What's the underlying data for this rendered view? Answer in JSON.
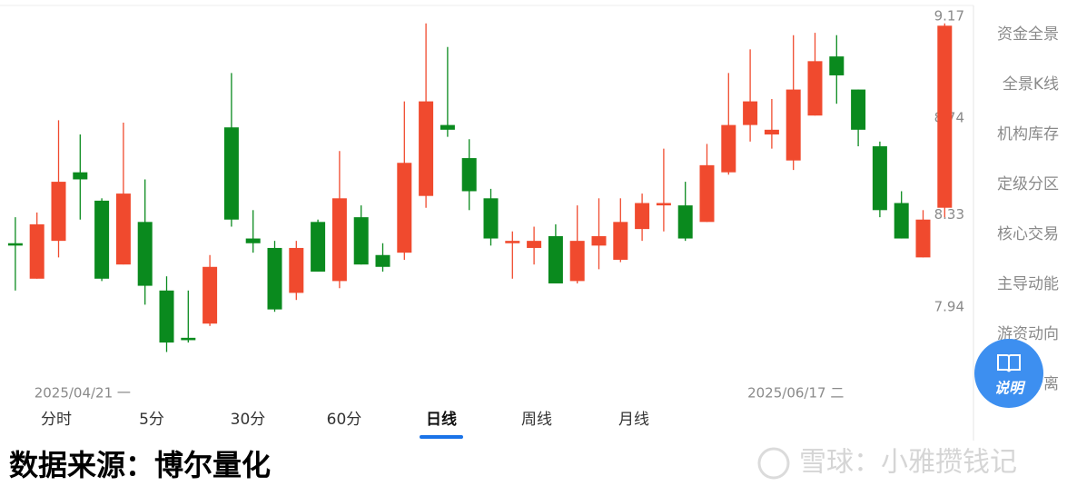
{
  "chart_data": {
    "type": "candlestick",
    "categories": [
      null,
      "2025/04/21 一",
      null,
      null,
      null,
      null,
      null,
      null,
      null,
      null,
      null,
      null,
      null,
      null,
      null,
      null,
      null,
      null,
      null,
      null,
      null,
      null,
      null,
      null,
      null,
      null,
      null,
      null,
      null,
      null,
      null,
      null,
      null,
      null,
      "2025/06/17 二",
      null,
      null,
      null,
      null,
      null,
      null,
      null,
      null,
      null
    ],
    "open": [
      8.21,
      8.06,
      8.22,
      8.51,
      8.39,
      8.12,
      8.3,
      8.01,
      7.81,
      7.87,
      8.7,
      8.23,
      8.19,
      8.0,
      8.3,
      8.05,
      8.32,
      8.16,
      8.17,
      8.41,
      8.71,
      8.57,
      8.4,
      8.21,
      8.19,
      8.24,
      8.05,
      8.2,
      8.14,
      8.27,
      8.37,
      8.37,
      8.3,
      8.51,
      8.71,
      8.67,
      8.56,
      8.75,
      9.0,
      8.86,
      8.62,
      8.38,
      8.15,
      8.36
    ],
    "high": [
      8.32,
      8.34,
      8.73,
      8.67,
      8.4,
      8.72,
      8.48,
      8.07,
      8.01,
      8.16,
      8.93,
      8.35,
      8.22,
      8.22,
      8.31,
      8.6,
      8.37,
      8.21,
      8.81,
      9.14,
      9.04,
      8.65,
      8.44,
      8.26,
      8.28,
      8.29,
      8.37,
      8.4,
      8.4,
      8.42,
      8.61,
      8.47,
      8.63,
      8.93,
      9.03,
      8.82,
      9.09,
      9.1,
      9.09,
      8.86,
      8.64,
      8.43,
      8.35,
      9.14
    ],
    "low": [
      8.01,
      8.06,
      8.15,
      8.31,
      8.05,
      8.12,
      7.95,
      7.75,
      7.79,
      7.86,
      8.28,
      8.17,
      7.92,
      7.97,
      8.09,
      8.02,
      8.12,
      8.09,
      8.14,
      8.36,
      8.66,
      8.35,
      8.2,
      8.06,
      8.12,
      8.04,
      8.04,
      8.1,
      8.13,
      8.22,
      8.26,
      8.22,
      8.3,
      8.5,
      8.64,
      8.61,
      8.52,
      8.75,
      8.8,
      8.62,
      8.32,
      8.23,
      8.15,
      8.32
    ],
    "close": [
      8.2,
      8.29,
      8.47,
      8.48,
      8.06,
      8.42,
      8.03,
      7.79,
      7.8,
      8.11,
      8.31,
      8.21,
      7.93,
      8.19,
      8.09,
      8.4,
      8.12,
      8.11,
      8.55,
      8.81,
      8.69,
      8.43,
      8.23,
      8.22,
      8.22,
      8.04,
      8.22,
      8.24,
      8.3,
      8.38,
      8.38,
      8.23,
      8.54,
      8.71,
      8.81,
      8.69,
      8.86,
      8.98,
      8.92,
      8.69,
      8.35,
      8.23,
      8.31,
      9.13
    ],
    "up_color": "#f04a2e",
    "down_color": "#0a8a1e",
    "ylim": [
      7.625,
      9.208
    ],
    "yticks": [
      9.17,
      8.74,
      8.33,
      7.94
    ],
    "grid": false
  },
  "tabs": [
    "分时",
    "5分",
    "30分",
    "60分",
    "日线",
    "周线",
    "月线"
  ],
  "active_tab": 4,
  "sidebar": [
    "资金全景",
    "全景K线",
    "机构库存",
    "定级分区",
    "核心交易",
    "主导动能",
    "游资动向",
    "筹码分离"
  ],
  "help_button": "说明",
  "source": "数据来源：博尔量化",
  "watermark": "雪球：小雅攒钱记"
}
